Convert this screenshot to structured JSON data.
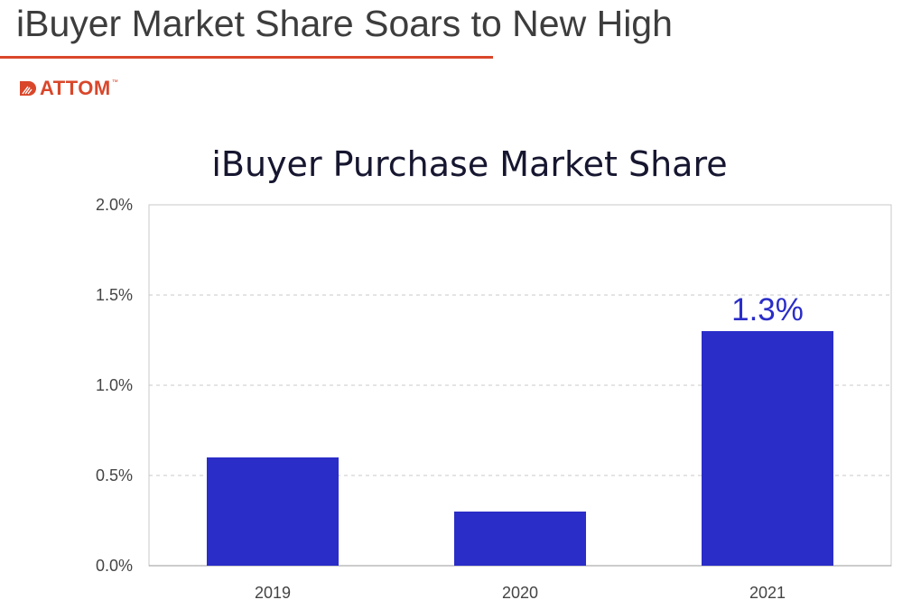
{
  "header": {
    "title": "iBuyer Market Share Soars to New High",
    "accent_color": "#d9472b"
  },
  "logo": {
    "text": "ATTOM",
    "trademark": "™",
    "color": "#d9472b"
  },
  "chart_data": {
    "type": "bar",
    "title": "iBuyer Purchase Market Share",
    "xlabel": "",
    "ylabel": "",
    "categories": [
      "2019",
      "2020",
      "2021"
    ],
    "values": [
      0.6,
      0.3,
      1.3
    ],
    "value_unit": "%",
    "ylim": [
      0,
      2.0
    ],
    "yticks": [
      0.0,
      0.5,
      1.0,
      1.5,
      2.0
    ],
    "ytick_labels": [
      "0.0%",
      "0.5%",
      "1.0%",
      "1.5%",
      "2.0%"
    ],
    "data_labels": [
      {
        "category": "2021",
        "text": "1.3%"
      }
    ],
    "grid": true,
    "grid_style": "dashed",
    "legend": "none",
    "bar_color": "#2a2dc8",
    "label_color": "#2a2dc8"
  }
}
